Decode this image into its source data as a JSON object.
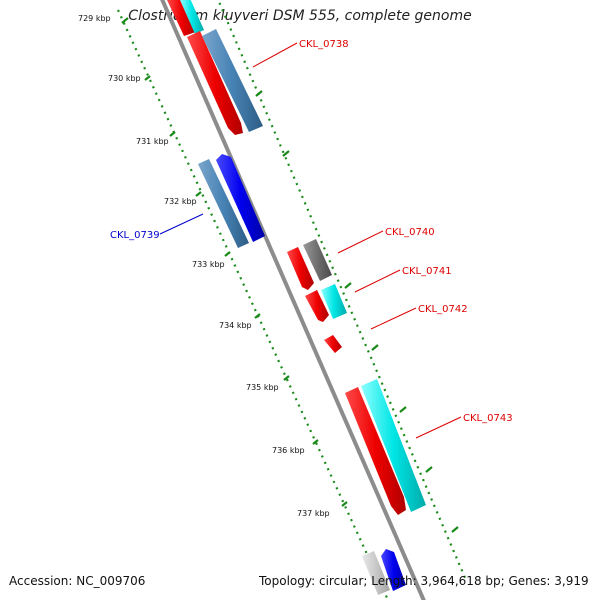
{
  "title": "Clostridium kluyveri DSM 555, complete genome",
  "footer": {
    "accession": "Accession: NC_009706",
    "summary": "Topology: circular; Length: 3,964,618 bp; Genes: 3,919"
  },
  "ticks": [
    "729 kbp",
    "730 kbp",
    "731 kbp",
    "732 kbp",
    "733 kbp",
    "734 kbp",
    "735 kbp",
    "736 kbp",
    "737 kbp"
  ],
  "genes": [
    {
      "label": "CKL_0738",
      "color": "#dd0000"
    },
    {
      "label": "CKL_0739",
      "color": "#0000cc"
    },
    {
      "label": "CKL_0740",
      "color": "#dd0000"
    },
    {
      "label": "CKL_0741",
      "color": "#dd0000"
    },
    {
      "label": "CKL_0742",
      "color": "#dd0000"
    },
    {
      "label": "CKL_0743",
      "color": "#dd0000"
    }
  ],
  "colors": {
    "red": "#ee0000",
    "blue": "#0000ee",
    "steelblue": "#4682b4",
    "cyan": "#00e5e5",
    "gray": "#6e6e6e",
    "lightgray": "#c8c8c8",
    "backbone": "#8c8c8c",
    "ticks": "#1a8a1a"
  }
}
